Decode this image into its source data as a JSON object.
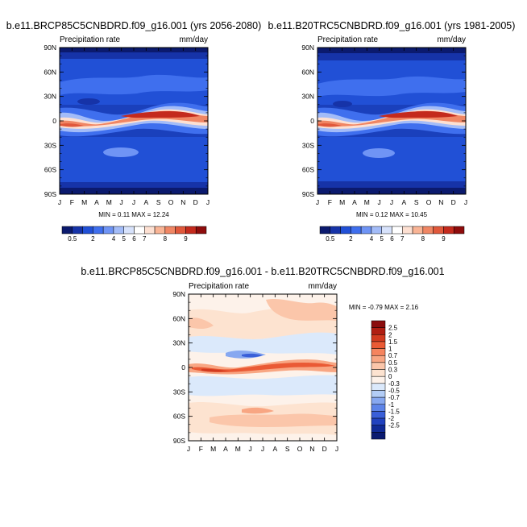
{
  "months": [
    "J",
    "F",
    "M",
    "A",
    "M",
    "J",
    "J",
    "A",
    "S",
    "O",
    "N",
    "D",
    "J"
  ],
  "lat_ticks": [
    "90N",
    "60N",
    "30N",
    "0",
    "30S",
    "60S",
    "90S"
  ],
  "chart_data": [
    {
      "type": "heatmap",
      "title": "b.e11.BRCP85C5CNBDRD.f09_g16.001 (yrs 2056-2080)",
      "left_label": "Precipitation rate",
      "right_label": "mm/day",
      "stats": "MIN =   0.11 MAX =  12.24",
      "x": "month of year (J..J)",
      "y": "latitude (90N..90S)",
      "colorbar": {
        "labels": [
          "0.5",
          "2",
          "4",
          "5",
          "6",
          "7",
          "8",
          "9"
        ],
        "colors": [
          "#0b1a6e",
          "#1633a8",
          "#2150d6",
          "#3f6fee",
          "#6f94f5",
          "#a3bcf8",
          "#d7e2fb",
          "#ffffff",
          "#fde0d2",
          "#f9b495",
          "#f08664",
          "#e0583b",
          "#c42a1d",
          "#8e0c0c"
        ]
      }
    },
    {
      "type": "heatmap",
      "title": "b.e11.B20TRC5CNBDRD.f09_g16.001 (yrs 1981-2005)",
      "left_label": "Precipitation rate",
      "right_label": "mm/day",
      "stats": "MIN =   0.12 MAX =  10.45",
      "colorbar": {
        "labels": [
          "0.5",
          "2",
          "4",
          "5",
          "6",
          "7",
          "8",
          "9"
        ],
        "colors": [
          "#0b1a6e",
          "#1633a8",
          "#2150d6",
          "#3f6fee",
          "#6f94f5",
          "#a3bcf8",
          "#d7e2fb",
          "#ffffff",
          "#fde0d2",
          "#f9b495",
          "#f08664",
          "#e0583b",
          "#c42a1d",
          "#8e0c0c"
        ]
      }
    },
    {
      "type": "heatmap",
      "title": "b.e11.BRCP85C5CNBDRD.f09_g16.001 - b.e11.B20TRC5CNBDRD.f09_g16.001",
      "left_label": "Precipitation rate",
      "right_label": "mm/day",
      "stats": "MIN =  -0.79 MAX =   2.16",
      "colorbar": {
        "labels": [
          "2.5",
          "2",
          "1.5",
          "1",
          "0.7",
          "0.5",
          "0.3",
          "0",
          "-0.3",
          "-0.5",
          "-0.7",
          "-1",
          "-1.5",
          "-2",
          "-2.5"
        ],
        "colors": [
          "#8b0d0d",
          "#b01e12",
          "#d23a1f",
          "#ea5a35",
          "#f5845e",
          "#f8a683",
          "#fbc6aa",
          "#fde3d0",
          "#fdf2ea",
          "#dbe9fb",
          "#b3cdf6",
          "#87a8f0",
          "#5d84e8",
          "#3a5fd8",
          "#2142bf",
          "#102a96",
          "#0a1a70"
        ]
      }
    }
  ]
}
